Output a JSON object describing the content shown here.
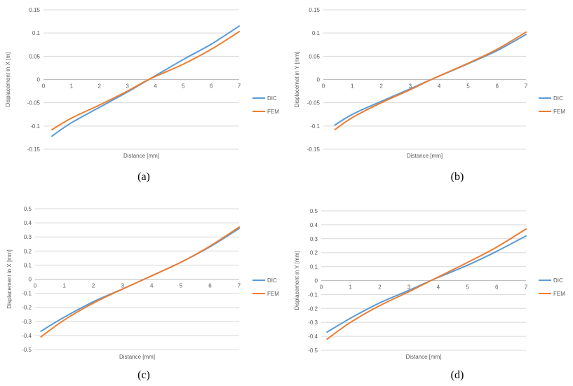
{
  "chart_data": [
    {
      "type": "line",
      "id": "a",
      "caption": "(a)",
      "xlabel": "Distance [mm]",
      "ylabel": "Displacement in X [m]",
      "xlim": [
        0,
        7
      ],
      "ylim": [
        -0.15,
        0.15
      ],
      "xticks": [
        0,
        1,
        2,
        3,
        4,
        5,
        6,
        7
      ],
      "yticks": [
        -0.15,
        -0.1,
        -0.05,
        0,
        0.05,
        0.1,
        0.15
      ],
      "ytick_labels": [
        "-0.15",
        "-0.1",
        "-0.05",
        "0",
        "0.05",
        "0.1",
        "0.15"
      ],
      "grid": true,
      "legend": "right",
      "series": [
        {
          "name": "DIC",
          "color": "#5b9bd5",
          "x": [
            0.3,
            1,
            2,
            3,
            3.8,
            5,
            6,
            7
          ],
          "y": [
            -0.122,
            -0.093,
            -0.06,
            -0.027,
            0.001,
            0.043,
            0.076,
            0.115
          ]
        },
        {
          "name": "FEM",
          "color": "#ed7d31",
          "x": [
            0.3,
            1,
            2,
            3,
            3.8,
            5,
            6,
            7
          ],
          "y": [
            -0.108,
            -0.083,
            -0.055,
            -0.025,
            0.001,
            0.033,
            0.065,
            0.103
          ]
        }
      ]
    },
    {
      "type": "line",
      "id": "b",
      "caption": "(b)",
      "xlabel": "Distance [mm]",
      "ylabel": "Displacemet in Y [mm]",
      "xlim": [
        0,
        7
      ],
      "ylim": [
        -0.15,
        0.15
      ],
      "xticks": [
        0,
        1,
        2,
        3,
        4,
        5,
        6,
        7
      ],
      "yticks": [
        -0.15,
        -0.1,
        -0.05,
        0,
        0.05,
        0.1,
        0.15
      ],
      "ytick_labels": [
        "-0.15",
        "-0.1",
        "-0.05",
        "0",
        "0.05",
        "0.1",
        "0.15"
      ],
      "grid": true,
      "legend": "right",
      "series": [
        {
          "name": "DIC",
          "color": "#5b9bd5",
          "x": [
            0.4,
            1,
            2,
            3,
            3.8,
            5,
            6,
            7
          ],
          "y": [
            -0.098,
            -0.075,
            -0.047,
            -0.02,
            0.002,
            0.034,
            0.062,
            0.097
          ]
        },
        {
          "name": "FEM",
          "color": "#ed7d31",
          "x": [
            0.4,
            1,
            2,
            3,
            3.8,
            5,
            6,
            7
          ],
          "y": [
            -0.108,
            -0.082,
            -0.05,
            -0.022,
            0.002,
            0.035,
            0.065,
            0.102
          ]
        }
      ]
    },
    {
      "type": "line",
      "id": "c",
      "caption": "(c)",
      "xlabel": "Distance [mm]",
      "ylabel": "Displacement in X [mm]",
      "xlim": [
        0,
        7
      ],
      "ylim": [
        -0.5,
        0.5
      ],
      "xticks": [
        0,
        1,
        2,
        3,
        4,
        5,
        6,
        7
      ],
      "yticks": [
        -0.5,
        -0.4,
        -0.3,
        -0.2,
        -0.1,
        0,
        0.1,
        0.2,
        0.3,
        0.4,
        0.5
      ],
      "ytick_labels": [
        "-0.5",
        "-0.4",
        "-0.3",
        "-0.2",
        "-0.1",
        "0",
        "0.1",
        "0.2",
        "0.3",
        "0.4",
        "0.5"
      ],
      "grid": true,
      "legend": "right",
      "series": [
        {
          "name": "DIC",
          "color": "#5b9bd5",
          "x": [
            0.2,
            1,
            2,
            3,
            3.8,
            5,
            6,
            7
          ],
          "y": [
            -0.37,
            -0.27,
            -0.16,
            -0.07,
            0.005,
            0.12,
            0.23,
            0.36
          ]
        },
        {
          "name": "FEM",
          "color": "#ed7d31",
          "x": [
            0.2,
            1,
            2,
            3,
            3.8,
            5,
            6,
            7
          ],
          "y": [
            -0.41,
            -0.29,
            -0.17,
            -0.07,
            0.005,
            0.12,
            0.235,
            0.37
          ]
        }
      ]
    },
    {
      "type": "line",
      "id": "d",
      "caption": "(d)",
      "xlabel": "Distance [mm]",
      "ylabel": "Displacement in Y [mm]",
      "xlim": [
        0,
        7
      ],
      "ylim": [
        -0.5,
        0.5
      ],
      "xticks": [
        0,
        1,
        2,
        3,
        4,
        5,
        6,
        7
      ],
      "yticks": [
        -0.5,
        -0.4,
        -0.3,
        -0.2,
        -0.1,
        0,
        0.1,
        0.2,
        0.3,
        0.4,
        0.5
      ],
      "ytick_labels": [
        "-0.5",
        "-0.4",
        "-0.3",
        "-0.2",
        "-0.1",
        "0",
        "0.1",
        "0.2",
        "0.3",
        "0.4",
        "0.5"
      ],
      "grid": true,
      "legend": "right",
      "series": [
        {
          "name": "DIC",
          "color": "#5b9bd5",
          "x": [
            0.2,
            1,
            2,
            3,
            3.8,
            5,
            6,
            7
          ],
          "y": [
            -0.37,
            -0.27,
            -0.16,
            -0.07,
            0.005,
            0.11,
            0.21,
            0.32
          ]
        },
        {
          "name": "FEM",
          "color": "#ed7d31",
          "x": [
            0.2,
            1,
            2,
            3,
            3.8,
            5,
            6,
            7
          ],
          "y": [
            -0.42,
            -0.3,
            -0.18,
            -0.08,
            0.005,
            0.13,
            0.24,
            0.37
          ]
        }
      ]
    }
  ]
}
